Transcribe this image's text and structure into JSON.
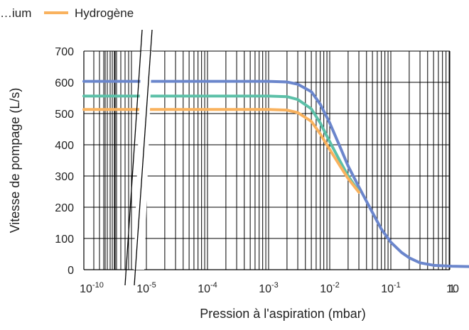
{
  "chart_data": {
    "type": "line",
    "x_scale": "log",
    "x_break": "axis break between 10^-10 and 10^-5",
    "xlabel": "Pression à l'aspiration (mbar)",
    "ylabel": "Vitesse de pompage (L/s)",
    "ylim": [
      0,
      700
    ],
    "y_ticks": [
      0,
      100,
      200,
      300,
      400,
      500,
      600,
      700
    ],
    "x_ticks": [
      {
        "value": 1e-10,
        "base": "10",
        "exp": "-10"
      },
      {
        "value": 1e-05,
        "base": "10",
        "exp": "-5"
      },
      {
        "value": 0.0001,
        "base": "10",
        "exp": "-4"
      },
      {
        "value": 0.001,
        "base": "10",
        "exp": "-3"
      },
      {
        "value": 0.01,
        "base": "10",
        "exp": "-2"
      },
      {
        "value": 0.1,
        "base": "10",
        "exp": "-1"
      },
      {
        "value": 1,
        "base": "1",
        "exp": ""
      },
      {
        "value": 10,
        "base": "10",
        "exp": ""
      }
    ],
    "grid": true,
    "legend_position": "top",
    "series": [
      {
        "name": "…ium",
        "color": "#6b86cc",
        "points": [
          [
            1e-10,
            603
          ],
          [
            1e-05,
            603
          ],
          [
            0.0001,
            603
          ],
          [
            0.001,
            603
          ],
          [
            0.002,
            601
          ],
          [
            0.003,
            594
          ],
          [
            0.005,
            570
          ],
          [
            0.007,
            530
          ],
          [
            0.01,
            470
          ],
          [
            0.015,
            390
          ],
          [
            0.02,
            332
          ],
          [
            0.03,
            265
          ],
          [
            0.05,
            183
          ],
          [
            0.07,
            130
          ],
          [
            0.1,
            88
          ],
          [
            0.15,
            55
          ],
          [
            0.2,
            38
          ],
          [
            0.3,
            22
          ],
          [
            0.5,
            14
          ],
          [
            1,
            11
          ],
          [
            2,
            10
          ],
          [
            10,
            10
          ]
        ]
      },
      {
        "name": "",
        "color": "#5cc0a8",
        "points": [
          [
            1e-10,
            556
          ],
          [
            1e-05,
            556
          ],
          [
            0.0001,
            556
          ],
          [
            0.001,
            556
          ],
          [
            0.002,
            554
          ],
          [
            0.003,
            545
          ],
          [
            0.005,
            515
          ],
          [
            0.007,
            470
          ],
          [
            0.01,
            410
          ],
          [
            0.015,
            345
          ],
          [
            0.02,
            300
          ],
          [
            0.03,
            250
          ]
        ]
      },
      {
        "name": "Hydrogène",
        "color": "#f9b25e",
        "points": [
          [
            1e-10,
            513
          ],
          [
            1e-05,
            513
          ],
          [
            0.0001,
            513
          ],
          [
            0.001,
            513
          ],
          [
            0.002,
            511
          ],
          [
            0.003,
            503
          ],
          [
            0.005,
            475
          ],
          [
            0.007,
            435
          ],
          [
            0.01,
            385
          ],
          [
            0.015,
            330
          ],
          [
            0.02,
            292
          ],
          [
            0.03,
            248
          ]
        ]
      }
    ]
  }
}
